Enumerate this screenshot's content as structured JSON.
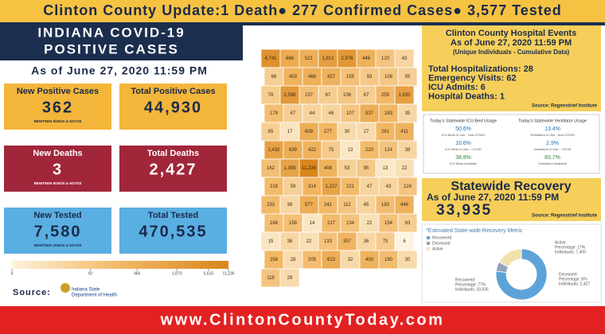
{
  "banner": {
    "text": "Clinton County Update:1 Death● 277 Confirmed Cases● 3,577 Tested"
  },
  "header": {
    "title_line1": "INDIANA COVID-19",
    "title_line2": "POSITIVE CASES",
    "as_of": "As of June 27, 2020 11:59 PM"
  },
  "cards": [
    {
      "label": "New Positive Cases",
      "value": "362",
      "note": "BEWTEEN 6/26/20 & 6/27/20"
    },
    {
      "label": "Total Positive Cases",
      "value": "44,930"
    },
    {
      "label": "New Deaths",
      "value": "3",
      "note": "BEWTEEN 6/25/20 & 6/27/20"
    },
    {
      "label": "Total Deaths",
      "value": "2,427"
    },
    {
      "label": "New Tested",
      "value": "7,580",
      "note": "BEWTEEN 2/26/20 & 6/27/20"
    },
    {
      "label": "Total Tested",
      "value": "470,535"
    }
  ],
  "map": {
    "county_values": [
      {
        "value": 4741,
        "label": "4,741"
      },
      668,
      521,
      {
        "value": 1812,
        "label": "1,812"
      },
      {
        "value": 2976,
        "label": "2,976"
      },
      446,
      120,
      43,
      66,
      403,
      468,
      427,
      155,
      93,
      106,
      55,
      78,
      {
        "value": 2598,
        "label": "2,598"
      },
      157,
      67,
      106,
      67,
      255,
      {
        "value": 1635,
        "label": "1,635"
      },
      179,
      67,
      44,
      46,
      107,
      537,
      283,
      35,
      65,
      17,
      609,
      277,
      30,
      27,
      281,
      411,
      {
        "value": 1432,
        "label": "1,432"
      },
      639,
      422,
      75,
      13,
      220,
      124,
      38,
      162,
      {
        "value": 1358,
        "label": "1,358"
      },
      {
        "value": 11236,
        "label": "11,236"
      },
      408,
      53,
      95,
      13,
      22,
      218,
      59,
      314,
      {
        "value": 1227,
        "label": "1,227"
      },
      221,
      47,
      43,
      124,
      233,
      38,
      577,
      241,
      112,
      45,
      183,
      446,
      168,
      158,
      14,
      217,
      134,
      22,
      154,
      63,
      15,
      38,
      22,
      133,
      357,
      36,
      75,
      6,
      258,
      28,
      205,
      613,
      32,
      400,
      190,
      30,
      118,
      29
    ],
    "legend_ticks": [
      6,
      92,
      466,
      {
        "value": 1870,
        "label": "1,870"
      },
      {
        "value": 5615,
        "label": "5,615"
      },
      {
        "value": 11236,
        "label": "11,236"
      }
    ]
  },
  "source": {
    "label": "Source:",
    "org_line1": "Indiana State",
    "org_line2": "Department of Health"
  },
  "hospital": {
    "title1": "Clinton County Hospital Events",
    "title2": "As of June 27, 2020 11:59 PM",
    "subtitle": "(Unique Individuals - Cumulative Data)",
    "lines": [
      "Total Hospitalizations: 28",
      "Emergency Visits: 62",
      "ICU Admits: 6",
      "Hospital Deaths: 1"
    ],
    "source": "Source: Regenstrief Institute"
  },
  "icu": {
    "title": "Today's Statewide ICU Bed Usage",
    "items": [
      {
        "value": "50.6%",
        "label": "ICU Beds in Use - Non-COVID"
      },
      {
        "value": "10.6%",
        "label": "ICU Beds in Use - COVID"
      },
      {
        "value": "38.8%",
        "label": "ICU Beds Available"
      }
    ]
  },
  "vent": {
    "title": "Today's Statewide Ventilator Usage",
    "items": [
      {
        "value": "13.4%",
        "label": "Ventilators in Use - Non-COVID"
      },
      {
        "value": "2.9%",
        "label": "Ventilators in Use - COVID"
      },
      {
        "value": "83.7%",
        "label": "Ventilators Available"
      }
    ]
  },
  "recovery": {
    "title": "Statewide Recovery",
    "as_of": "As of June 27, 2020 11:59 PM",
    "value": "33,935",
    "source": "Source: Regenstrief Institute"
  },
  "metric": {
    "title": "*Estimated State-wide Recovery Metric",
    "segments": [
      {
        "name": "Recovered",
        "color": "#5ea3d8",
        "percentage": 77,
        "percentage_label": "Percentage: 77%",
        "individuals_label": "Individuals: 33,935"
      },
      {
        "name": "Deceased",
        "color": "#8fa4bd",
        "percentage": 6,
        "percentage_label": "Percentage: 6%",
        "individuals_label": "Individuals: 2,427"
      },
      {
        "name": "Active",
        "color": "#efe2ad",
        "percentage": 17,
        "percentage_label": "Percentage: 17%",
        "individuals_label": "Individuals: 7,409"
      }
    ]
  },
  "footer": {
    "url": "www.ClintonCountyToday.com"
  }
}
